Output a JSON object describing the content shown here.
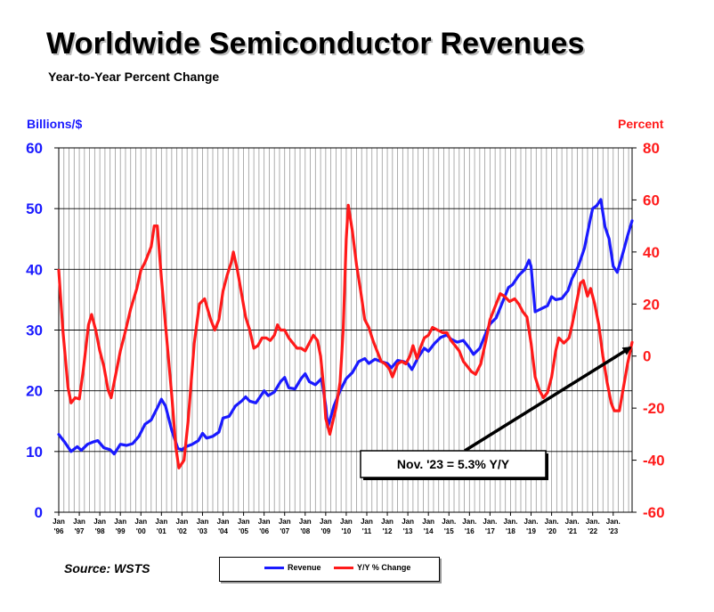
{
  "header": {
    "title": "Worldwide Semiconductor Revenues",
    "subtitle": "Year-to-Year Percent Change"
  },
  "footer": {
    "source": "Source: WSTS"
  },
  "chart_data": {
    "type": "line",
    "title": "Worldwide Semiconductor Revenues",
    "subtitle": "Year-to-Year Percent Change",
    "ylabel_left": "Billions/$",
    "ylabel_right": "Percent",
    "ylim_left": [
      0,
      60
    ],
    "ylim_right": [
      -60,
      80
    ],
    "yticks_left": [
      0,
      10,
      20,
      30,
      40,
      50,
      60
    ],
    "yticks_right": [
      -60,
      -40,
      -20,
      0,
      20,
      40,
      60,
      80
    ],
    "xlim": [
      1996.0,
      2023.92
    ],
    "xtick_labels": [
      {
        "x": 1996,
        "top": "Jan",
        "bottom": "'96"
      },
      {
        "x": 1997,
        "top": "Jan",
        "bottom": "'97"
      },
      {
        "x": 1998,
        "top": "Jan",
        "bottom": "'98"
      },
      {
        "x": 1999,
        "top": "Jan",
        "bottom": "'99"
      },
      {
        "x": 2000,
        "top": "Jan",
        "bottom": "'00"
      },
      {
        "x": 2001,
        "top": "Jan",
        "bottom": "'01"
      },
      {
        "x": 2002,
        "top": "Jan",
        "bottom": "'02"
      },
      {
        "x": 2003,
        "top": "Jan",
        "bottom": "'03"
      },
      {
        "x": 2004,
        "top": "Jan",
        "bottom": "'04"
      },
      {
        "x": 2005,
        "top": "Jan",
        "bottom": "'05"
      },
      {
        "x": 2006,
        "top": "Jan",
        "bottom": "'06"
      },
      {
        "x": 2007,
        "top": "Jan",
        "bottom": "'07"
      },
      {
        "x": 2008,
        "top": "Jan",
        "bottom": "'08"
      },
      {
        "x": 2009,
        "top": "Jan",
        "bottom": "'09"
      },
      {
        "x": 2010,
        "top": "Jan",
        "bottom": "'10"
      },
      {
        "x": 2011,
        "top": "Jan",
        "bottom": "'11"
      },
      {
        "x": 2012,
        "top": "Jan",
        "bottom": "'12"
      },
      {
        "x": 2013,
        "top": "Jan",
        "bottom": "'13"
      },
      {
        "x": 2014,
        "top": "Jan",
        "bottom": "'14"
      },
      {
        "x": 2015,
        "top": "Jan.",
        "bottom": "'15"
      },
      {
        "x": 2016,
        "top": "Jan.",
        "bottom": "'16"
      },
      {
        "x": 2017,
        "top": "Jan.",
        "bottom": "'17"
      },
      {
        "x": 2018,
        "top": "Jan.",
        "bottom": "'18"
      },
      {
        "x": 2019,
        "top": "Jan.",
        "bottom": "'19"
      },
      {
        "x": 2020,
        "top": "Jan.",
        "bottom": "'20"
      },
      {
        "x": 2021,
        "top": "Jan.",
        "bottom": "'21"
      },
      {
        "x": 2022,
        "top": "Jan.",
        "bottom": "'22"
      },
      {
        "x": 2023,
        "top": "Jan.",
        "bottom": "'23"
      }
    ],
    "grid": true,
    "legend": "bottom-center",
    "series": [
      {
        "name": "Revenue",
        "axis": "left",
        "color": "#1a1aff",
        "points": [
          [
            1996.0,
            12.8
          ],
          [
            1996.3,
            11.5
          ],
          [
            1996.6,
            10.0
          ],
          [
            1996.9,
            10.8
          ],
          [
            1997.1,
            10.2
          ],
          [
            1997.4,
            11.2
          ],
          [
            1997.7,
            11.6
          ],
          [
            1997.9,
            11.8
          ],
          [
            1998.2,
            10.6
          ],
          [
            1998.5,
            10.3
          ],
          [
            1998.7,
            9.6
          ],
          [
            1999.0,
            11.2
          ],
          [
            1999.3,
            11.0
          ],
          [
            1999.6,
            11.3
          ],
          [
            1999.9,
            12.5
          ],
          [
            2000.2,
            14.5
          ],
          [
            2000.5,
            15.2
          ],
          [
            2000.8,
            17.2
          ],
          [
            2001.0,
            18.6
          ],
          [
            2001.2,
            17.5
          ],
          [
            2001.5,
            13.5
          ],
          [
            2001.8,
            10.5
          ],
          [
            2002.0,
            10.3
          ],
          [
            2002.2,
            10.8
          ],
          [
            2002.5,
            11.2
          ],
          [
            2002.8,
            11.8
          ],
          [
            2003.0,
            13.0
          ],
          [
            2003.2,
            12.2
          ],
          [
            2003.5,
            12.5
          ],
          [
            2003.8,
            13.2
          ],
          [
            2004.0,
            15.5
          ],
          [
            2004.3,
            15.8
          ],
          [
            2004.6,
            17.5
          ],
          [
            2004.9,
            18.3
          ],
          [
            2005.1,
            19.0
          ],
          [
            2005.3,
            18.3
          ],
          [
            2005.6,
            18.0
          ],
          [
            2005.9,
            19.5
          ],
          [
            2006.0,
            20.0
          ],
          [
            2006.2,
            19.2
          ],
          [
            2006.5,
            19.8
          ],
          [
            2006.8,
            21.5
          ],
          [
            2007.0,
            22.2
          ],
          [
            2007.2,
            20.5
          ],
          [
            2007.5,
            20.3
          ],
          [
            2007.8,
            22.0
          ],
          [
            2008.0,
            22.8
          ],
          [
            2008.2,
            21.5
          ],
          [
            2008.5,
            21.0
          ],
          [
            2008.8,
            22.0
          ],
          [
            2009.0,
            17.5
          ],
          [
            2009.1,
            14.0
          ],
          [
            2009.4,
            17.5
          ],
          [
            2009.7,
            20.0
          ],
          [
            2010.0,
            22.0
          ],
          [
            2010.3,
            23.0
          ],
          [
            2010.6,
            24.8
          ],
          [
            2010.9,
            25.3
          ],
          [
            2011.1,
            24.5
          ],
          [
            2011.4,
            25.2
          ],
          [
            2011.7,
            24.8
          ],
          [
            2012.0,
            24.5
          ],
          [
            2012.2,
            23.8
          ],
          [
            2012.5,
            25.0
          ],
          [
            2012.8,
            24.8
          ],
          [
            2013.0,
            24.5
          ],
          [
            2013.2,
            23.5
          ],
          [
            2013.5,
            25.5
          ],
          [
            2013.8,
            27.0
          ],
          [
            2014.0,
            26.5
          ],
          [
            2014.3,
            27.8
          ],
          [
            2014.6,
            28.8
          ],
          [
            2014.9,
            29.2
          ],
          [
            2015.1,
            28.5
          ],
          [
            2015.4,
            28.0
          ],
          [
            2015.7,
            28.3
          ],
          [
            2016.0,
            27.0
          ],
          [
            2016.2,
            26.0
          ],
          [
            2016.5,
            27.0
          ],
          [
            2016.8,
            29.5
          ],
          [
            2017.0,
            31.0
          ],
          [
            2017.3,
            32.0
          ],
          [
            2017.6,
            34.5
          ],
          [
            2017.9,
            37.0
          ],
          [
            2018.1,
            37.5
          ],
          [
            2018.4,
            39.0
          ],
          [
            2018.7,
            40.0
          ],
          [
            2018.9,
            41.5
          ],
          [
            2019.0,
            40.5
          ],
          [
            2019.2,
            33.0
          ],
          [
            2019.5,
            33.5
          ],
          [
            2019.8,
            34.0
          ],
          [
            2020.0,
            35.5
          ],
          [
            2020.2,
            35.0
          ],
          [
            2020.5,
            35.2
          ],
          [
            2020.8,
            36.5
          ],
          [
            2021.0,
            38.5
          ],
          [
            2021.3,
            40.5
          ],
          [
            2021.6,
            43.5
          ],
          [
            2021.9,
            48.5
          ],
          [
            2022.0,
            50.0
          ],
          [
            2022.2,
            50.5
          ],
          [
            2022.4,
            51.5
          ],
          [
            2022.6,
            47.0
          ],
          [
            2022.8,
            45.0
          ],
          [
            2023.0,
            40.5
          ],
          [
            2023.2,
            39.5
          ],
          [
            2023.5,
            43.0
          ],
          [
            2023.7,
            45.5
          ],
          [
            2023.92,
            48.0
          ]
        ]
      },
      {
        "name": "Y/Y % Change",
        "axis": "right",
        "color": "#ff1a1a",
        "points": [
          [
            1996.0,
            33.0
          ],
          [
            1996.2,
            10.0
          ],
          [
            1996.45,
            -12.0
          ],
          [
            1996.6,
            -18.0
          ],
          [
            1996.8,
            -16.0
          ],
          [
            1997.0,
            -16.5
          ],
          [
            1997.2,
            -5.0
          ],
          [
            1997.45,
            12.0
          ],
          [
            1997.6,
            16.0
          ],
          [
            1997.8,
            10.0
          ],
          [
            1998.0,
            2.0
          ],
          [
            1998.2,
            -4.0
          ],
          [
            1998.4,
            -13.0
          ],
          [
            1998.55,
            -16.0
          ],
          [
            1998.8,
            -6.0
          ],
          [
            1999.0,
            2.0
          ],
          [
            1999.2,
            8.0
          ],
          [
            1999.5,
            18.0
          ],
          [
            1999.8,
            26.0
          ],
          [
            2000.0,
            33.0
          ],
          [
            2000.2,
            36.0
          ],
          [
            2000.5,
            42.0
          ],
          [
            2000.65,
            50.0
          ],
          [
            2000.8,
            50.0
          ],
          [
            2001.0,
            30.0
          ],
          [
            2001.2,
            12.0
          ],
          [
            2001.5,
            -15.0
          ],
          [
            2001.7,
            -35.0
          ],
          [
            2001.85,
            -43.0
          ],
          [
            2002.1,
            -40.0
          ],
          [
            2002.3,
            -25.0
          ],
          [
            2002.6,
            5.0
          ],
          [
            2002.85,
            20.0
          ],
          [
            2003.1,
            22.0
          ],
          [
            2003.4,
            14.0
          ],
          [
            2003.6,
            10.0
          ],
          [
            2003.8,
            14.0
          ],
          [
            2004.0,
            25.0
          ],
          [
            2004.2,
            31.0
          ],
          [
            2004.4,
            36.0
          ],
          [
            2004.5,
            40.0
          ],
          [
            2004.7,
            33.0
          ],
          [
            2004.9,
            24.0
          ],
          [
            2005.1,
            15.0
          ],
          [
            2005.3,
            10.0
          ],
          [
            2005.5,
            3.0
          ],
          [
            2005.7,
            4.0
          ],
          [
            2005.9,
            7.0
          ],
          [
            2006.1,
            7.0
          ],
          [
            2006.3,
            6.0
          ],
          [
            2006.5,
            8.0
          ],
          [
            2006.65,
            12.0
          ],
          [
            2006.8,
            10.0
          ],
          [
            2007.0,
            10.0
          ],
          [
            2007.2,
            7.0
          ],
          [
            2007.4,
            5.0
          ],
          [
            2007.6,
            3.0
          ],
          [
            2007.8,
            3.0
          ],
          [
            2008.0,
            2.0
          ],
          [
            2008.2,
            5.0
          ],
          [
            2008.4,
            8.0
          ],
          [
            2008.6,
            6.0
          ],
          [
            2008.75,
            0.0
          ],
          [
            2008.9,
            -12.0
          ],
          [
            2009.0,
            -24.0
          ],
          [
            2009.2,
            -30.0
          ],
          [
            2009.5,
            -20.0
          ],
          [
            2009.7,
            -10.0
          ],
          [
            2009.85,
            10.0
          ],
          [
            2010.0,
            45.0
          ],
          [
            2010.1,
            58.0
          ],
          [
            2010.3,
            48.0
          ],
          [
            2010.5,
            35.0
          ],
          [
            2010.7,
            25.0
          ],
          [
            2010.9,
            14.0
          ],
          [
            2011.1,
            11.0
          ],
          [
            2011.3,
            6.0
          ],
          [
            2011.5,
            2.0
          ],
          [
            2011.7,
            -2.0
          ],
          [
            2011.9,
            -3.0
          ],
          [
            2012.1,
            -5.0
          ],
          [
            2012.25,
            -8.0
          ],
          [
            2012.5,
            -3.0
          ],
          [
            2012.7,
            -2.0
          ],
          [
            2012.9,
            -3.0
          ],
          [
            2013.1,
            0.0
          ],
          [
            2013.25,
            4.0
          ],
          [
            2013.45,
            -1.0
          ],
          [
            2013.6,
            3.0
          ],
          [
            2013.8,
            7.0
          ],
          [
            2014.0,
            8.0
          ],
          [
            2014.2,
            11.0
          ],
          [
            2014.45,
            10.0
          ],
          [
            2014.7,
            9.0
          ],
          [
            2014.9,
            9.0
          ],
          [
            2015.1,
            6.0
          ],
          [
            2015.3,
            4.0
          ],
          [
            2015.5,
            2.0
          ],
          [
            2015.7,
            -2.0
          ],
          [
            2015.9,
            -4.0
          ],
          [
            2016.1,
            -6.0
          ],
          [
            2016.3,
            -7.0
          ],
          [
            2016.55,
            -3.0
          ],
          [
            2016.8,
            6.0
          ],
          [
            2017.0,
            14.0
          ],
          [
            2017.3,
            20.0
          ],
          [
            2017.5,
            24.0
          ],
          [
            2017.7,
            23.0
          ],
          [
            2017.95,
            21.0
          ],
          [
            2018.2,
            22.0
          ],
          [
            2018.4,
            20.0
          ],
          [
            2018.6,
            17.0
          ],
          [
            2018.8,
            15.0
          ],
          [
            2019.0,
            5.0
          ],
          [
            2019.2,
            -8.0
          ],
          [
            2019.4,
            -13.0
          ],
          [
            2019.6,
            -16.0
          ],
          [
            2019.8,
            -14.0
          ],
          [
            2020.0,
            -8.0
          ],
          [
            2020.2,
            2.0
          ],
          [
            2020.35,
            7.0
          ],
          [
            2020.6,
            5.0
          ],
          [
            2020.85,
            7.0
          ],
          [
            2021.0,
            12.0
          ],
          [
            2021.2,
            20.0
          ],
          [
            2021.4,
            28.0
          ],
          [
            2021.55,
            29.0
          ],
          [
            2021.75,
            23.0
          ],
          [
            2021.9,
            26.0
          ],
          [
            2022.1,
            20.0
          ],
          [
            2022.3,
            12.0
          ],
          [
            2022.5,
            0.0
          ],
          [
            2022.7,
            -10.0
          ],
          [
            2022.9,
            -18.0
          ],
          [
            2023.05,
            -21.0
          ],
          [
            2023.3,
            -21.0
          ],
          [
            2023.5,
            -12.0
          ],
          [
            2023.7,
            -3.0
          ],
          [
            2023.92,
            5.3
          ]
        ]
      }
    ],
    "annotations": [
      {
        "text": "Nov. '23 = 5.3% Y/Y",
        "points_to": [
          2023.92,
          5.3
        ],
        "arrow_from": [
          2018.2,
          -36
        ]
      }
    ]
  },
  "legend": {
    "items": [
      {
        "label": "Revenue",
        "color": "#1a1aff"
      },
      {
        "label": "Y/Y % Change",
        "color": "#ff1a1a"
      }
    ]
  }
}
